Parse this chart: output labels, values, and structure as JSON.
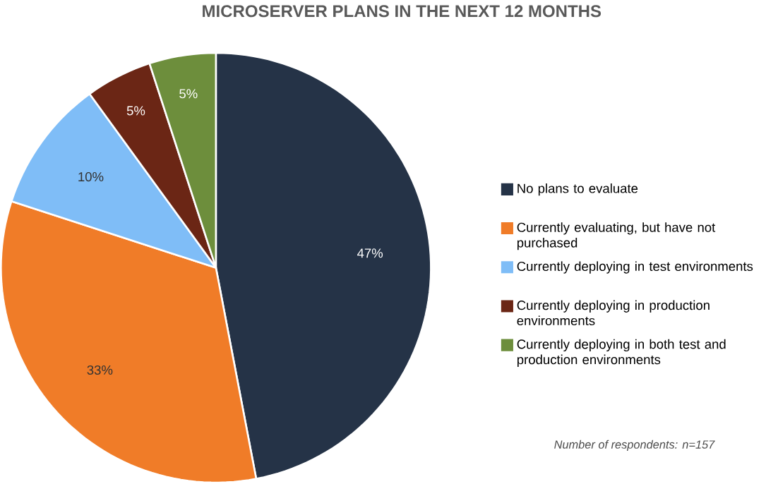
{
  "chart_data": {
    "type": "pie",
    "title": "MICROSERVER PLANS IN THE NEXT 12 MONTHS",
    "categories": [
      "No plans to evaluate",
      "Currently evaluating, but have not purchased",
      "Currently deploying in test environments",
      "Currently deploying in production environments",
      "Currently deploying in both test and production environments"
    ],
    "values": [
      47,
      33,
      10,
      5,
      5
    ],
    "colors": [
      "#253347",
      "#f07c28",
      "#7fbdf7",
      "#6b2615",
      "#6d8e3c"
    ],
    "value_labels": [
      "47%",
      "33%",
      "10%",
      "5%",
      "5%"
    ],
    "legend": "right",
    "annotations": [
      "Number of respondents: n=157"
    ]
  }
}
